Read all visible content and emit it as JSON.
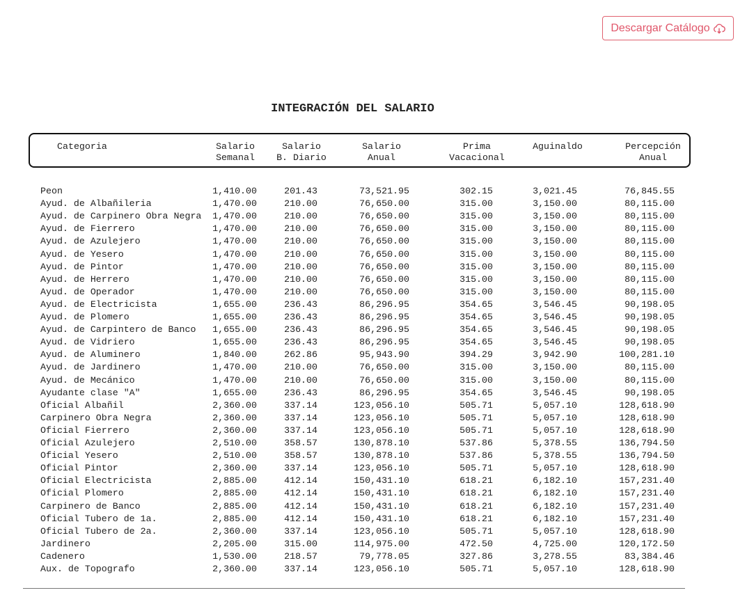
{
  "button": {
    "label": "Descargar Catálogo"
  },
  "title": "INTEGRACIÓN DEL SALARIO",
  "table": {
    "columns": [
      [
        "Categoria"
      ],
      [
        "Salario",
        "Semanal"
      ],
      [
        "Salario",
        "B. Diario"
      ],
      [
        "Salario",
        "Anual"
      ],
      [
        "Prima",
        "Vacacional"
      ],
      [
        "Aguinaldo"
      ],
      [
        "Percepción",
        "Anual"
      ]
    ],
    "rows": [
      [
        "Peon",
        "1,410.00",
        "201.43",
        "73,521.95",
        "302.15",
        "3,021.45",
        "76,845.55"
      ],
      [
        "Ayud. de Albañileria",
        "1,470.00",
        "210.00",
        "76,650.00",
        "315.00",
        "3,150.00",
        "80,115.00"
      ],
      [
        "Ayud. de Carpinero Obra Negra",
        "1,470.00",
        "210.00",
        "76,650.00",
        "315.00",
        "3,150.00",
        "80,115.00"
      ],
      [
        "Ayud. de Fierrero",
        "1,470.00",
        "210.00",
        "76,650.00",
        "315.00",
        "3,150.00",
        "80,115.00"
      ],
      [
        "Ayud. de Azulejero",
        "1,470.00",
        "210.00",
        "76,650.00",
        "315.00",
        "3,150.00",
        "80,115.00"
      ],
      [
        "Ayud. de Yesero",
        "1,470.00",
        "210.00",
        "76,650.00",
        "315.00",
        "3,150.00",
        "80,115.00"
      ],
      [
        "Ayud. de Pintor",
        "1,470.00",
        "210.00",
        "76,650.00",
        "315.00",
        "3,150.00",
        "80,115.00"
      ],
      [
        "Ayud. de Herrero",
        "1,470.00",
        "210.00",
        "76,650.00",
        "315.00",
        "3,150.00",
        "80,115.00"
      ],
      [
        "Ayud. de Operador",
        "1,470.00",
        "210.00",
        "76,650.00",
        "315.00",
        "3,150.00",
        "80,115.00"
      ],
      [
        "Ayud. de Electricista",
        "1,655.00",
        "236.43",
        "86,296.95",
        "354.65",
        "3,546.45",
        "90,198.05"
      ],
      [
        "Ayud. de Plomero",
        "1,655.00",
        "236.43",
        "86,296.95",
        "354.65",
        "3,546.45",
        "90,198.05"
      ],
      [
        "Ayud. de Carpintero de Banco",
        "1,655.00",
        "236.43",
        "86,296.95",
        "354.65",
        "3,546.45",
        "90,198.05"
      ],
      [
        "Ayud. de Vidriero",
        "1,655.00",
        "236.43",
        "86,296.95",
        "354.65",
        "3,546.45",
        "90,198.05"
      ],
      [
        "Ayud. de Aluminero",
        "1,840.00",
        "262.86",
        "95,943.90",
        "394.29",
        "3,942.90",
        "100,281.10"
      ],
      [
        "Ayud. de Jardinero",
        "1,470.00",
        "210.00",
        "76,650.00",
        "315.00",
        "3,150.00",
        "80,115.00"
      ],
      [
        "Ayud. de Mecánico",
        "1,470.00",
        "210.00",
        "76,650.00",
        "315.00",
        "3,150.00",
        "80,115.00"
      ],
      [
        "Ayudante clase \"A\"",
        "1,655.00",
        "236.43",
        "86,296.95",
        "354.65",
        "3,546.45",
        "90,198.05"
      ],
      [
        "Oficial Albañil",
        "2,360.00",
        "337.14",
        "123,056.10",
        "505.71",
        "5,057.10",
        "128,618.90"
      ],
      [
        "Carpinero Obra Negra",
        "2,360.00",
        "337.14",
        "123,056.10",
        "505.71",
        "5,057.10",
        "128,618.90"
      ],
      [
        "Oficial Fierrero",
        "2,360.00",
        "337.14",
        "123,056.10",
        "505.71",
        "5,057.10",
        "128,618.90"
      ],
      [
        "Oficial Azulejero",
        "2,510.00",
        "358.57",
        "130,878.10",
        "537.86",
        "5,378.55",
        "136,794.50"
      ],
      [
        "Oficial Yesero",
        "2,510.00",
        "358.57",
        "130,878.10",
        "537.86",
        "5,378.55",
        "136,794.50"
      ],
      [
        "Oficial Pintor",
        "2,360.00",
        "337.14",
        "123,056.10",
        "505.71",
        "5,057.10",
        "128,618.90"
      ],
      [
        "Oficial Electricista",
        "2,885.00",
        "412.14",
        "150,431.10",
        "618.21",
        "6,182.10",
        "157,231.40"
      ],
      [
        "Oficial Plomero",
        "2,885.00",
        "412.14",
        "150,431.10",
        "618.21",
        "6,182.10",
        "157,231.40"
      ],
      [
        "Carpinero de Banco",
        "2,885.00",
        "412.14",
        "150,431.10",
        "618.21",
        "6,182.10",
        "157,231.40"
      ],
      [
        "Oficial Tubero de 1a.",
        "2,885.00",
        "412.14",
        "150,431.10",
        "618.21",
        "6,182.10",
        "157,231.40"
      ],
      [
        "Oficial Tubero de 2a.",
        "2,360.00",
        "337.14",
        "123,056.10",
        "505.71",
        "5,057.10",
        "128,618.90"
      ],
      [
        "Jardinero",
        "2,205.00",
        "315.00",
        "114,975.00",
        "472.50",
        "4,725.00",
        "120,172.50"
      ],
      [
        "Cadenero",
        "1,530.00",
        "218.57",
        "79,778.05",
        "327.86",
        "3,278.55",
        "83,384.46"
      ],
      [
        "Aux. de Topografo",
        "2,360.00",
        "337.14",
        "123,056.10",
        "505.71",
        "5,057.10",
        "128,618.90"
      ]
    ]
  }
}
